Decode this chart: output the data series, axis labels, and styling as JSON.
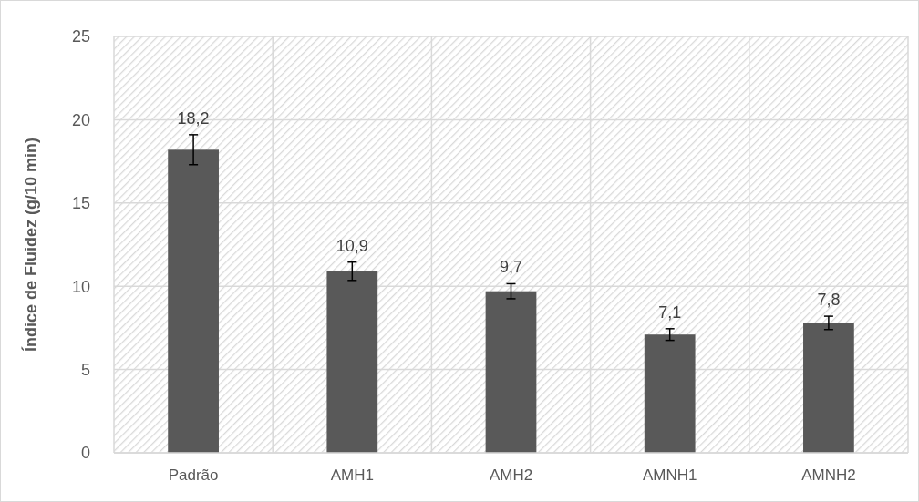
{
  "chart_data": {
    "type": "bar",
    "ylabel": "Índice de Fluidez (g/10 min)",
    "categories": [
      "Padrão",
      "AMH1",
      "AMH2",
      "AMNH1",
      "AMNH2"
    ],
    "values": [
      18.2,
      10.9,
      9.7,
      7.1,
      7.8
    ],
    "errors": [
      0.9,
      0.55,
      0.45,
      0.35,
      0.4
    ],
    "value_labels": [
      "18,2",
      "10,9",
      "9,7",
      "7,1",
      "7,8"
    ],
    "color": "#595959",
    "ylim": [
      0,
      25
    ],
    "yticks": [
      0,
      5,
      10,
      15,
      20,
      25
    ],
    "grid": true
  }
}
